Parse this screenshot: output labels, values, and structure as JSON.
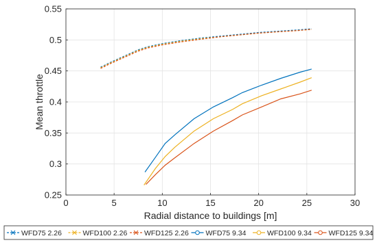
{
  "chart_data": {
    "type": "line",
    "title": "",
    "xlabel": "Radial distance to buildings [m]",
    "ylabel": "Mean throttle",
    "xlim": [
      0,
      30
    ],
    "ylim": [
      0.25,
      0.55
    ],
    "xticks": [
      "0",
      "5",
      "10",
      "15",
      "20",
      "25",
      "30"
    ],
    "yticks": [
      "0.25",
      "0.3",
      "0.35",
      "0.4",
      "0.45",
      "0.5",
      "0.55"
    ],
    "grid": true,
    "legend_position": "bottom",
    "series": [
      {
        "name": "WFD75 2.26",
        "color": "#0072BD",
        "style": "dashed",
        "marker": "x",
        "x": [
          3.6,
          4.5,
          5.5,
          6.5,
          7.5,
          8.5,
          10,
          12,
          14,
          16,
          18,
          20,
          22,
          24,
          25.5
        ],
        "y": [
          0.456,
          0.463,
          0.47,
          0.477,
          0.484,
          0.489,
          0.494,
          0.499,
          0.503,
          0.506,
          0.509,
          0.512,
          0.514,
          0.516,
          0.518
        ]
      },
      {
        "name": "WFD100 2.26",
        "color": "#EDB120",
        "style": "dashed",
        "marker": "x",
        "x": [
          3.6,
          4.5,
          5.5,
          6.5,
          7.5,
          8.5,
          10,
          12,
          14,
          16,
          18,
          20,
          22,
          24,
          25.5
        ],
        "y": [
          0.455,
          0.462,
          0.469,
          0.476,
          0.483,
          0.488,
          0.493,
          0.498,
          0.502,
          0.505,
          0.508,
          0.511,
          0.513,
          0.515,
          0.517
        ]
      },
      {
        "name": "WFD125 2.26",
        "color": "#D95319",
        "style": "dashed",
        "marker": "x",
        "x": [
          3.6,
          4.5,
          5.5,
          6.5,
          7.5,
          8.5,
          10,
          12,
          14,
          16,
          18,
          20,
          22,
          24,
          25.5
        ],
        "y": [
          0.454,
          0.461,
          0.468,
          0.475,
          0.482,
          0.487,
          0.492,
          0.497,
          0.501,
          0.505,
          0.508,
          0.511,
          0.513,
          0.515,
          0.517
        ]
      },
      {
        "name": "WFD75 9.34",
        "color": "#0072BD",
        "style": "solid",
        "marker": "o",
        "x": [
          8.2,
          9.3,
          10.3,
          11.3,
          13.3,
          15.3,
          17.3,
          18.3,
          20.3,
          22.3,
          24.3,
          25.5
        ],
        "y": [
          0.287,
          0.311,
          0.333,
          0.347,
          0.373,
          0.392,
          0.407,
          0.415,
          0.427,
          0.438,
          0.448,
          0.453
        ]
      },
      {
        "name": "WFD100 9.34",
        "color": "#EDB120",
        "style": "solid",
        "marker": "o",
        "x": [
          8.1,
          9.3,
          10.3,
          11.3,
          13.3,
          15.3,
          17.3,
          18.3,
          20.3,
          22.3,
          24.3,
          25.5
        ],
        "y": [
          0.266,
          0.293,
          0.312,
          0.327,
          0.353,
          0.373,
          0.388,
          0.397,
          0.41,
          0.421,
          0.432,
          0.439
        ]
      },
      {
        "name": "WFD125 9.34",
        "color": "#D95319",
        "style": "solid",
        "marker": "o",
        "x": [
          8.3,
          9.3,
          10.3,
          11.3,
          13.3,
          15.3,
          17.3,
          18.3,
          20.3,
          22.3,
          24.3,
          25.5
        ],
        "y": [
          0.267,
          0.283,
          0.298,
          0.31,
          0.333,
          0.353,
          0.37,
          0.379,
          0.392,
          0.405,
          0.413,
          0.419
        ]
      }
    ]
  }
}
